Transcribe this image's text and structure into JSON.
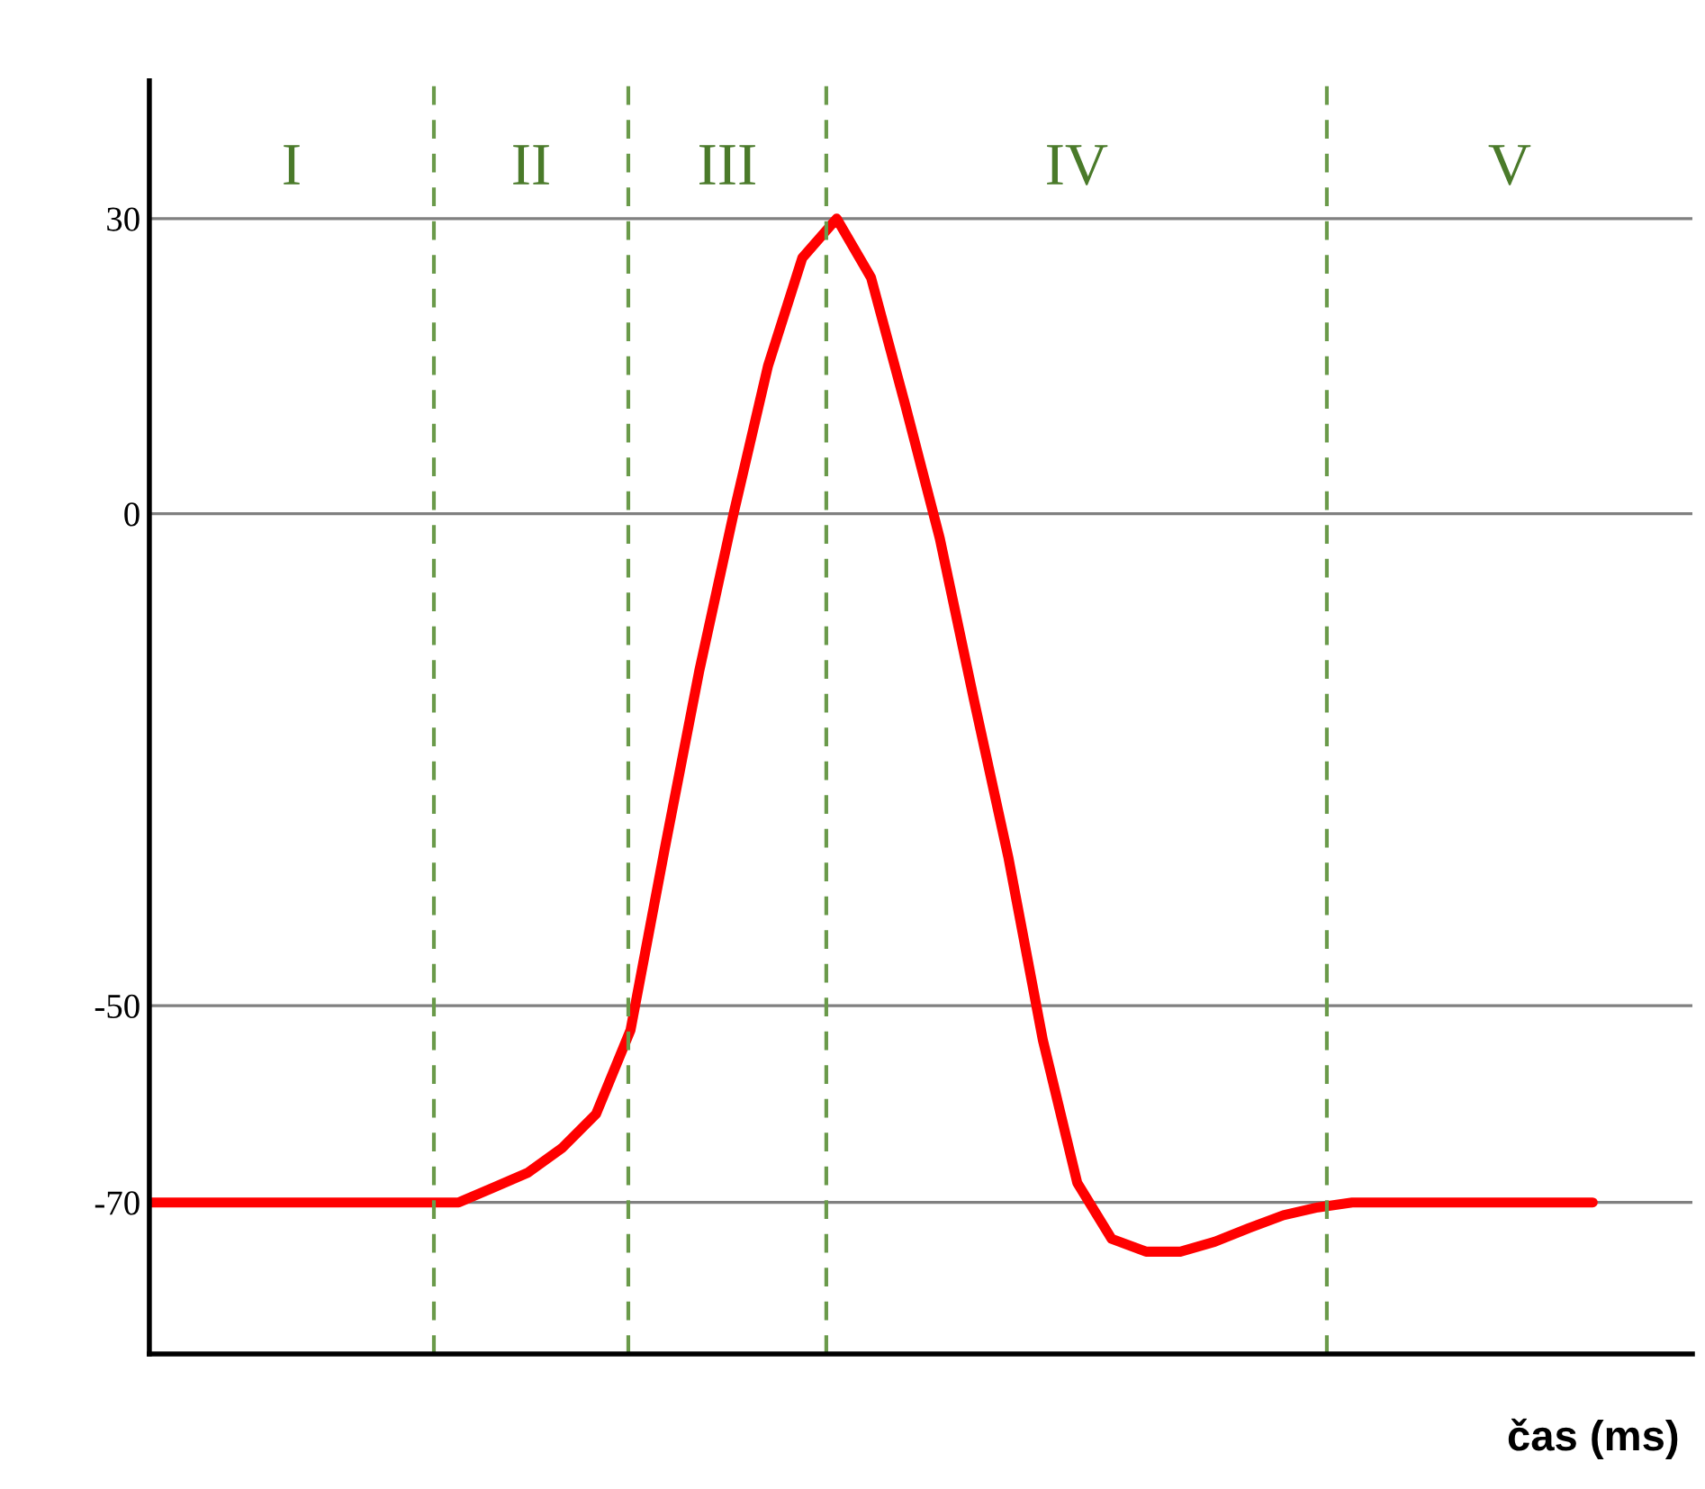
{
  "chart_data": {
    "type": "line",
    "xlabel": "čas (ms)",
    "categories": [
      null,
      null,
      null,
      null,
      null,
      null,
      null,
      null,
      null,
      null,
      null,
      null,
      null,
      null,
      null,
      null,
      null,
      null,
      null,
      null,
      null,
      null,
      null,
      null,
      null,
      null,
      null,
      null,
      null,
      null,
      null,
      null,
      null,
      null,
      null,
      null,
      null,
      null,
      null,
      null,
      null,
      null,
      null
    ],
    "series": [
      {
        "color": "#ff0000",
        "values": [
          -70,
          -70,
          -70,
          -70,
          -70,
          -70,
          -70,
          -70,
          -70,
          -70,
          -68.5,
          -67,
          -64.5,
          -61,
          -52.5,
          -34,
          -16,
          0,
          15,
          26,
          30,
          24,
          11,
          -2.5,
          -19,
          -35,
          -53.5,
          -68,
          -73.7,
          -75,
          -75,
          -74,
          -72.6,
          -71.3,
          -70.5,
          -70,
          -70,
          -70,
          -70,
          -70,
          -70,
          -70,
          -70
        ]
      }
    ],
    "ylim": [
      -85.4,
      44
    ],
    "yticks": [
      30,
      0,
      -50,
      -70
    ],
    "grid": "y",
    "tick_labels": "y",
    "marker": "none",
    "line_style": "solid",
    "annotations": [
      "I",
      "II",
      "III",
      "IV",
      "V"
    ]
  }
}
